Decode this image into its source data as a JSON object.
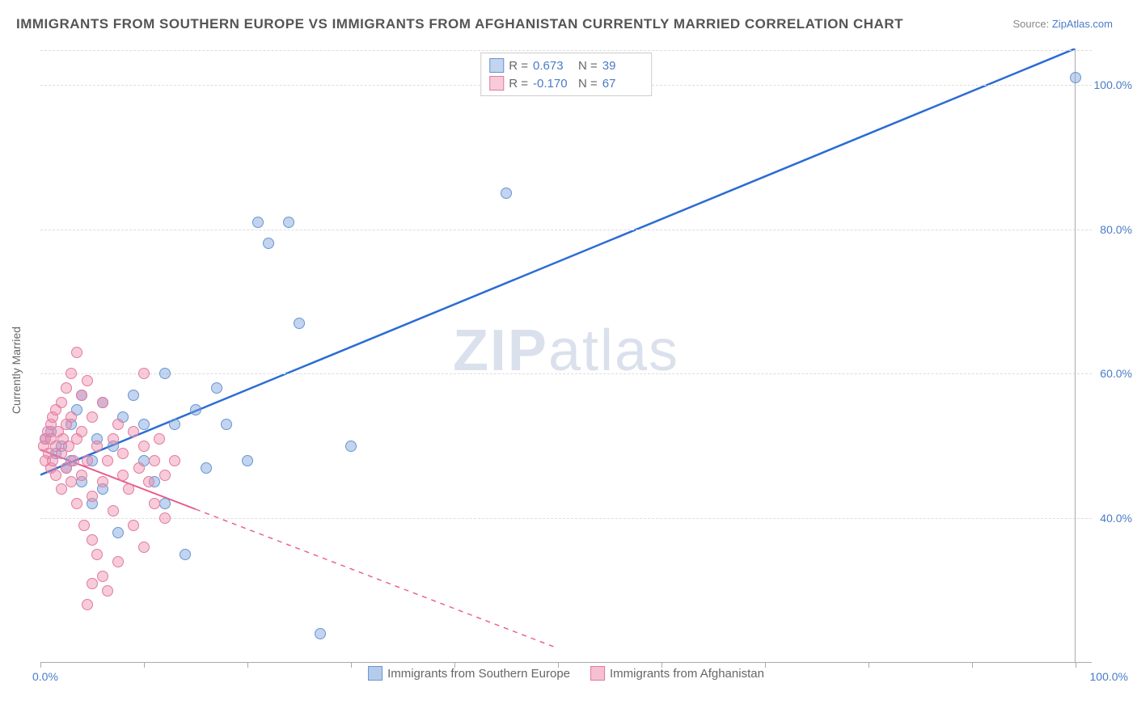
{
  "title": "IMMIGRANTS FROM SOUTHERN EUROPE VS IMMIGRANTS FROM AFGHANISTAN CURRENTLY MARRIED CORRELATION CHART",
  "source_label": "Source: ",
  "source_link": "ZipAtlas.com",
  "watermark_a": "ZIP",
  "watermark_b": "atlas",
  "chart": {
    "type": "scatter",
    "ylabel": "Currently Married",
    "xlim": [
      0,
      100
    ],
    "ylim": [
      20,
      105
    ],
    "x_axis_labels": {
      "left": "0.0%",
      "right": "100.0%"
    },
    "y_grid": [
      40,
      60,
      80,
      100
    ],
    "y_tick_labels": [
      "40.0%",
      "60.0%",
      "80.0%",
      "100.0%"
    ],
    "x_ticks": [
      0,
      10,
      20,
      30,
      40,
      50,
      60,
      70,
      80,
      90,
      100
    ],
    "background_color": "#ffffff",
    "grid_color": "#dddddd",
    "axis_color": "#aaaaaa",
    "label_color": "#4a7bc8",
    "series": [
      {
        "name": "Immigrants from Southern Europe",
        "color_fill": "rgba(120,160,220,0.45)",
        "color_stroke": "#6a95d0",
        "marker_size": 14,
        "R": "0.673",
        "N": "39",
        "trend": {
          "x1": 0,
          "y1": 46,
          "x2": 100,
          "y2": 105,
          "solid_until_x": 100,
          "color": "#2b6cd4",
          "width": 2.5
        },
        "points": [
          [
            0.5,
            51
          ],
          [
            1,
            52
          ],
          [
            1.5,
            49
          ],
          [
            2,
            50
          ],
          [
            2.5,
            47
          ],
          [
            3,
            53
          ],
          [
            3,
            48
          ],
          [
            3.5,
            55
          ],
          [
            4,
            45
          ],
          [
            4,
            57
          ],
          [
            5,
            42
          ],
          [
            5,
            48
          ],
          [
            5.5,
            51
          ],
          [
            6,
            56
          ],
          [
            6,
            44
          ],
          [
            7,
            50
          ],
          [
            7.5,
            38
          ],
          [
            8,
            54
          ],
          [
            9,
            57
          ],
          [
            10,
            48
          ],
          [
            10,
            53
          ],
          [
            11,
            45
          ],
          [
            12,
            60
          ],
          [
            12,
            42
          ],
          [
            13,
            53
          ],
          [
            14,
            35
          ],
          [
            15,
            55
          ],
          [
            16,
            47
          ],
          [
            17,
            58
          ],
          [
            18,
            53
          ],
          [
            20,
            48
          ],
          [
            21,
            81
          ],
          [
            22,
            78
          ],
          [
            24,
            81
          ],
          [
            25,
            67
          ],
          [
            27,
            24
          ],
          [
            30,
            50
          ],
          [
            45,
            85
          ],
          [
            100,
            101
          ]
        ]
      },
      {
        "name": "Immigrants from Afghanistan",
        "color_fill": "rgba(240,140,170,0.45)",
        "color_stroke": "#e07ba0",
        "marker_size": 14,
        "R": "-0.170",
        "N": "67",
        "trend": {
          "x1": 0,
          "y1": 49.5,
          "x2": 50,
          "y2": 22,
          "solid_until_x": 15,
          "color": "#e85a8a",
          "width": 2
        },
        "points": [
          [
            0.3,
            50
          ],
          [
            0.5,
            51
          ],
          [
            0.5,
            48
          ],
          [
            0.7,
            52
          ],
          [
            0.8,
            49
          ],
          [
            1,
            53
          ],
          [
            1,
            47
          ],
          [
            1,
            51
          ],
          [
            1.2,
            54
          ],
          [
            1.2,
            48
          ],
          [
            1.5,
            55
          ],
          [
            1.5,
            50
          ],
          [
            1.5,
            46
          ],
          [
            1.7,
            52
          ],
          [
            2,
            56
          ],
          [
            2,
            49
          ],
          [
            2,
            44
          ],
          [
            2.2,
            51
          ],
          [
            2.5,
            58
          ],
          [
            2.5,
            47
          ],
          [
            2.5,
            53
          ],
          [
            2.7,
            50
          ],
          [
            3,
            60
          ],
          [
            3,
            45
          ],
          [
            3,
            54
          ],
          [
            3.2,
            48
          ],
          [
            3.5,
            63
          ],
          [
            3.5,
            51
          ],
          [
            3.5,
            42
          ],
          [
            4,
            57
          ],
          [
            4,
            46
          ],
          [
            4,
            52
          ],
          [
            4.2,
            39
          ],
          [
            4.5,
            59
          ],
          [
            4.5,
            48
          ],
          [
            5,
            43
          ],
          [
            5,
            54
          ],
          [
            5,
            37
          ],
          [
            5.5,
            50
          ],
          [
            5.5,
            35
          ],
          [
            6,
            45
          ],
          [
            6,
            56
          ],
          [
            6,
            32
          ],
          [
            6.5,
            48
          ],
          [
            6.5,
            30
          ],
          [
            7,
            51
          ],
          [
            7,
            41
          ],
          [
            7.5,
            53
          ],
          [
            7.5,
            34
          ],
          [
            8,
            46
          ],
          [
            8,
            49
          ],
          [
            8.5,
            44
          ],
          [
            9,
            52
          ],
          [
            9,
            39
          ],
          [
            9.5,
            47
          ],
          [
            10,
            50
          ],
          [
            10,
            36
          ],
          [
            10.5,
            45
          ],
          [
            11,
            48
          ],
          [
            11,
            42
          ],
          [
            11.5,
            51
          ],
          [
            12,
            46
          ],
          [
            12,
            40
          ],
          [
            13,
            48
          ],
          [
            10,
            60
          ],
          [
            5,
            31
          ],
          [
            4.5,
            28
          ]
        ]
      }
    ]
  },
  "legend_top_labels": {
    "R": "R =",
    "N": "N ="
  },
  "legend_bottom": [
    {
      "label": "Immigrants from Southern Europe",
      "fill": "rgba(120,160,220,0.55)",
      "stroke": "#6a95d0"
    },
    {
      "label": "Immigrants from Afghanistan",
      "fill": "rgba(240,140,170,0.55)",
      "stroke": "#e07ba0"
    }
  ]
}
